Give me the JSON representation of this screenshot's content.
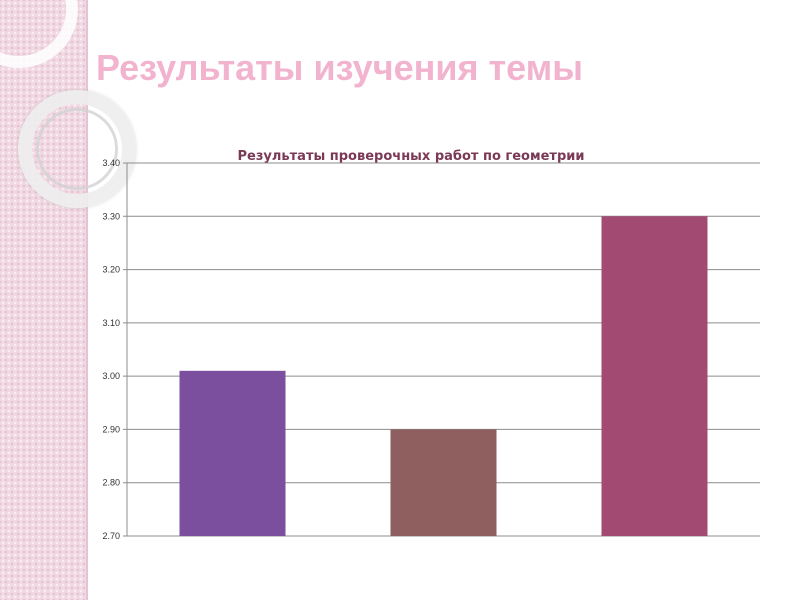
{
  "slide": {
    "title": "Результаты изучения темы"
  },
  "chart_data": {
    "type": "bar",
    "title": "Результаты проверочных работ по геометрии",
    "xlabel": "",
    "ylabel": "",
    "categories": [
      "",
      "",
      ""
    ],
    "values": [
      3.01,
      2.9,
      3.3
    ],
    "bar_colors": [
      "#7b4f9d",
      "#8f5e5e",
      "#a34a73"
    ],
    "ylim": [
      2.7,
      3.4
    ],
    "yticks": [
      "2.70",
      "2.80",
      "2.90",
      "3.00",
      "3.10",
      "3.20",
      "3.30",
      "3.40"
    ],
    "grid": true,
    "legend": "none"
  },
  "theme": {
    "title_color": "#f2b3cf",
    "chart_title_color": "#7a3a55",
    "gridline_color": "#8c8c8c",
    "panel_color": "#f1d9e3"
  }
}
